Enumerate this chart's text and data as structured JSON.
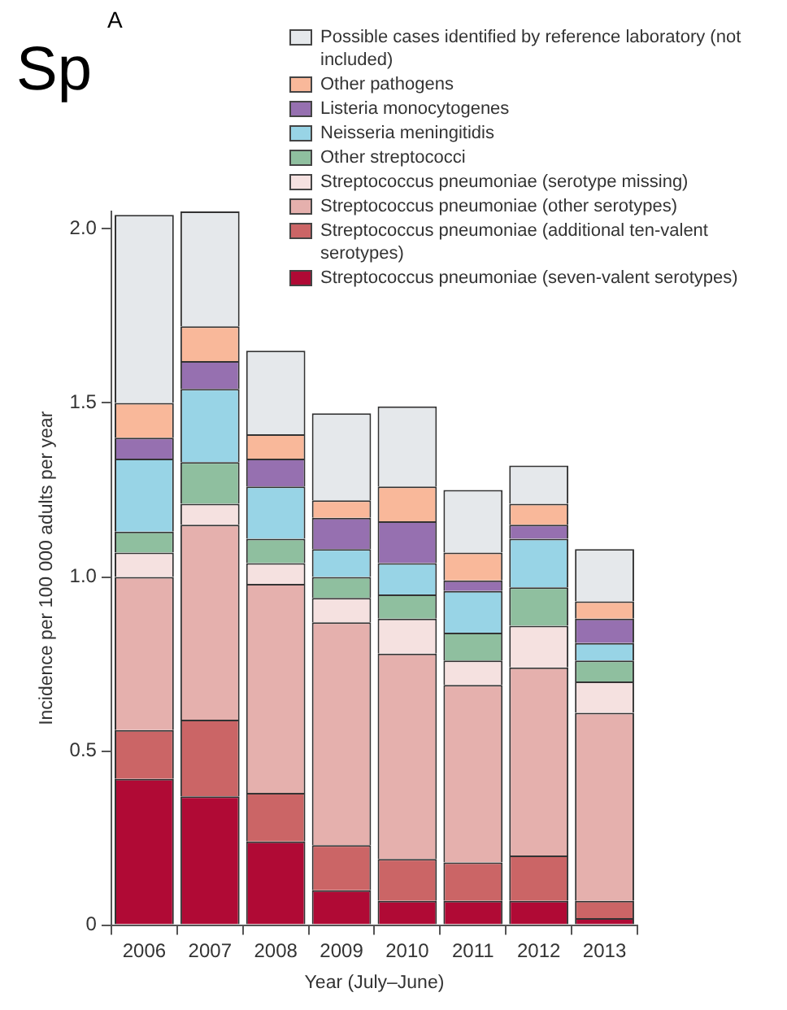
{
  "chart_data": {
    "type": "bar",
    "stacked": true,
    "categories": [
      "2006",
      "2007",
      "2008",
      "2009",
      "2010",
      "2011",
      "2012",
      "2013"
    ],
    "xlabel": "Year (July–June)",
    "ylabel": "Incidence per 100 000 adults per year",
    "ylim": [
      0,
      2.05
    ],
    "yticks": [
      0,
      0.5,
      {
        "value": 1,
        "label": "1.0"
      },
      1.5,
      {
        "value": 2,
        "label": "2.0"
      }
    ],
    "grid": false,
    "legend": "top right",
    "annotations": [
      "Sp",
      "A"
    ],
    "series": [
      {
        "name": "Streptococcus pneumoniae (seven-valent serotypes)",
        "color": "#b00a35",
        "values": [
          0.42,
          0.37,
          0.24,
          0.1,
          0.07,
          0.07,
          0.07,
          0.02
        ]
      },
      {
        "name": "Streptococcus pneumoniae (additional ten-valent serotypes)",
        "color": "#cb6566",
        "values": [
          0.14,
          0.22,
          0.14,
          0.13,
          0.12,
          0.11,
          0.13,
          0.05
        ]
      },
      {
        "name": "Streptococcus pneumoniae (other serotypes)",
        "color": "#e5b0ad",
        "values": [
          0.44,
          0.56,
          0.6,
          0.64,
          0.59,
          0.51,
          0.54,
          0.54
        ]
      },
      {
        "name": "Streptococcus pneumoniae (serotype missing)",
        "color": "#f5e1e0",
        "values": [
          0.07,
          0.06,
          0.06,
          0.07,
          0.1,
          0.07,
          0.12,
          0.09
        ]
      },
      {
        "name": "Other streptococci",
        "color": "#8fbf9f",
        "values": [
          0.06,
          0.12,
          0.07,
          0.06,
          0.07,
          0.08,
          0.11,
          0.06
        ]
      },
      {
        "name": "Neisseria meningitidis",
        "color": "#98d4e6",
        "values": [
          0.21,
          0.21,
          0.15,
          0.08,
          0.09,
          0.12,
          0.14,
          0.05
        ]
      },
      {
        "name": "Listeria monocytogenes",
        "color": "#9670b0",
        "values": [
          0.06,
          0.08,
          0.08,
          0.09,
          0.12,
          0.03,
          0.04,
          0.07
        ]
      },
      {
        "name": "Other pathogens",
        "color": "#f9b89a",
        "values": [
          0.1,
          0.1,
          0.07,
          0.05,
          0.1,
          0.08,
          0.06,
          0.05
        ]
      },
      {
        "name": "Possible cases identified by reference laboratory (not included)",
        "color": "#e5e8eb",
        "values": [
          0.54,
          0.33,
          0.24,
          0.25,
          0.23,
          0.18,
          0.11,
          0.15
        ]
      }
    ]
  }
}
